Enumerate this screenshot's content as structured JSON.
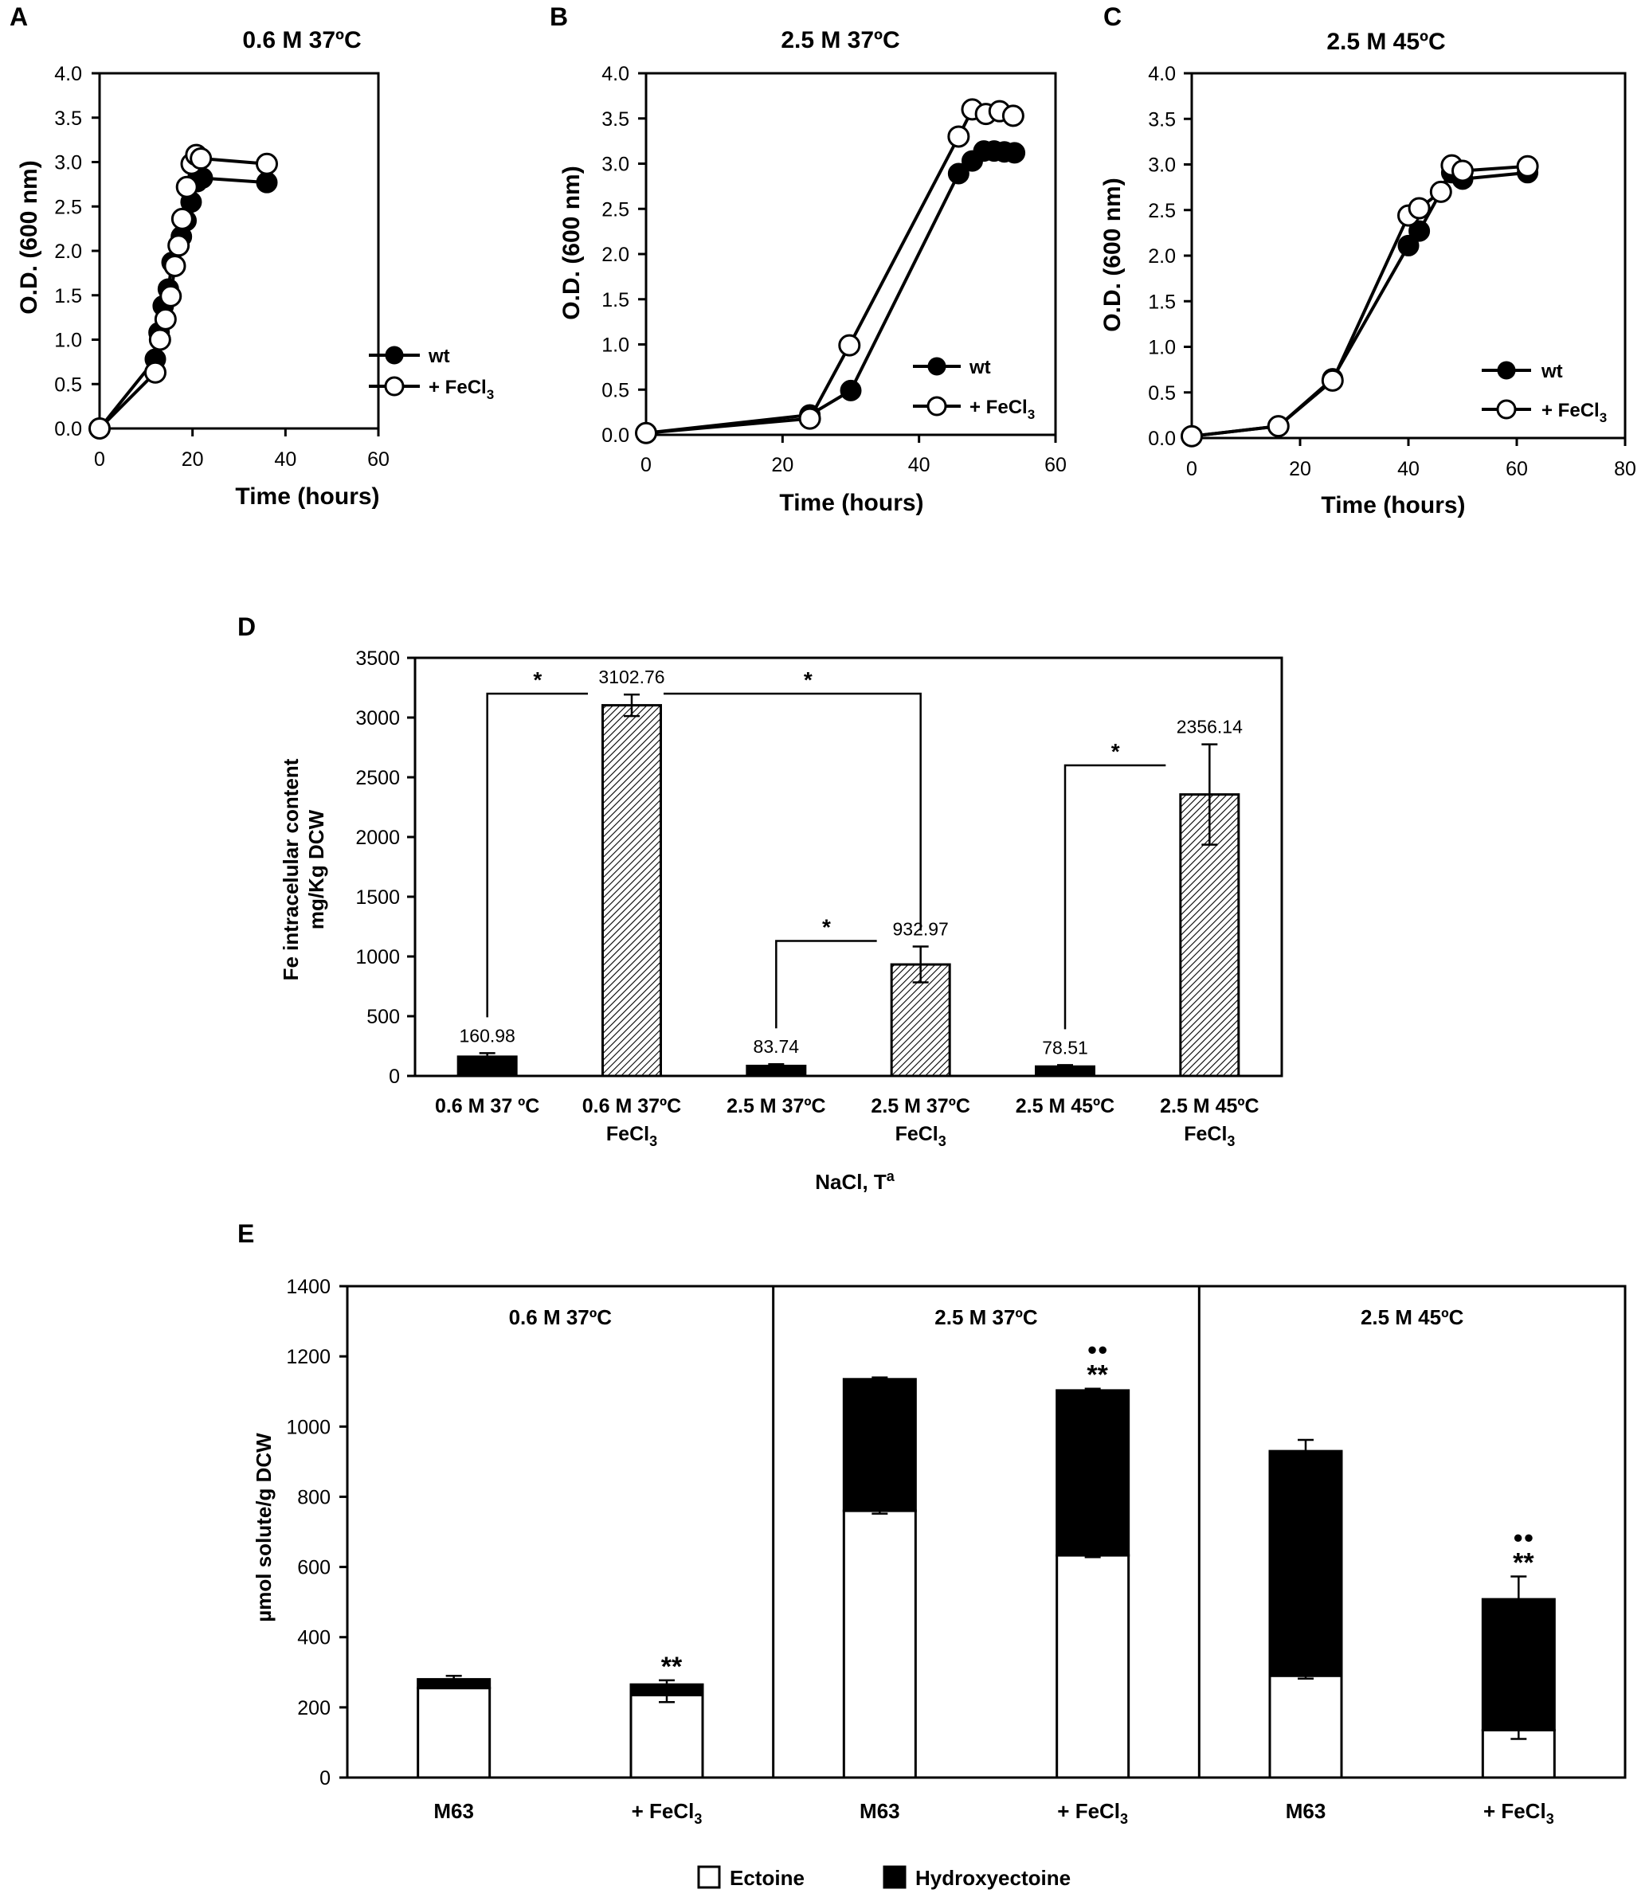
{
  "chart_data": [
    {
      "id": "A",
      "type": "line",
      "panel_label": "A",
      "title": "0.6 M 37ºC",
      "xlabel": "Time (hours)",
      "ylabel": "O.D. (600 nm)",
      "xlim": [
        0,
        60
      ],
      "ylim": [
        0,
        4
      ],
      "xticks": [
        "0",
        "20",
        "40",
        "60"
      ],
      "yticks": [
        "0.0",
        "0.5",
        "1.0",
        "1.5",
        "2.0",
        "2.5",
        "3.0",
        "3.5",
        "4.0"
      ],
      "legend_position": "bottom-right",
      "series": [
        {
          "name": "wt",
          "legend_label": "wt",
          "fill": "#000000",
          "x": [
            0,
            12,
            12.8,
            13.7,
            14.8,
            15.6,
            17.6,
            18.6,
            19.7,
            21.0,
            22.1,
            36.0
          ],
          "y": [
            0.0,
            0.78,
            1.08,
            1.38,
            1.57,
            1.87,
            2.16,
            2.34,
            2.55,
            2.78,
            2.82,
            2.77
          ]
        },
        {
          "name": "+ FeCl3",
          "legend_label": "+ FeCl",
          "legend_sub": "3",
          "fill": "#ffffff",
          "x": [
            0,
            12.0,
            13.0,
            14.2,
            15.3,
            16.2,
            17.0,
            17.8,
            18.8,
            19.8,
            20.8,
            21.8,
            36.0
          ],
          "y": [
            0.0,
            0.63,
            1.0,
            1.23,
            1.49,
            1.83,
            2.06,
            2.36,
            2.72,
            2.98,
            3.08,
            3.04,
            2.98
          ]
        }
      ]
    },
    {
      "id": "B",
      "type": "line",
      "panel_label": "B",
      "title": "2.5 M 37ºC",
      "xlabel": "Time (hours)",
      "ylabel": "O.D. (600 nm)",
      "xlim": [
        0,
        60
      ],
      "ylim": [
        0,
        4
      ],
      "xticks": [
        "0",
        "20",
        "40",
        "60"
      ],
      "yticks": [
        "0.0",
        "0.5",
        "1.0",
        "1.5",
        "2.0",
        "2.5",
        "3.0",
        "3.5",
        "4.0"
      ],
      "legend_position": "bottom-right",
      "series": [
        {
          "name": "wt",
          "legend_label": "wt",
          "fill": "#000000",
          "x": [
            0,
            24,
            30,
            45.8,
            47.8,
            49.5,
            51.0,
            52.5,
            54.0
          ],
          "y": [
            0.02,
            0.22,
            0.49,
            2.89,
            3.03,
            3.14,
            3.14,
            3.13,
            3.12
          ]
        },
        {
          "name": "+ FeCl3",
          "legend_label": "+ FeCl",
          "legend_sub": "3",
          "fill": "#ffffff",
          "x": [
            0,
            24,
            29.8,
            45.8,
            47.8,
            49.8,
            51.8,
            53.8
          ],
          "y": [
            0.02,
            0.18,
            0.99,
            3.3,
            3.6,
            3.55,
            3.58,
            3.53
          ]
        }
      ]
    },
    {
      "id": "C",
      "type": "line",
      "panel_label": "C",
      "title": "2.5 M 45ºC",
      "xlabel": "Time (hours)",
      "ylabel": "O.D. (600 nm)",
      "xlim": [
        0,
        80
      ],
      "ylim": [
        0,
        4
      ],
      "xticks": [
        "0",
        "20",
        "40",
        "60",
        "80"
      ],
      "yticks": [
        "0.0",
        "0.5",
        "1.0",
        "1.5",
        "2.0",
        "2.5",
        "3.0",
        "3.5",
        "4.0"
      ],
      "legend_position": "bottom-right",
      "series": [
        {
          "name": "wt",
          "legend_label": "wt",
          "fill": "#000000",
          "x": [
            0,
            16,
            26,
            40,
            42,
            46,
            48,
            50,
            62
          ],
          "y": [
            0.02,
            0.13,
            0.65,
            2.11,
            2.27,
            2.7,
            2.91,
            2.84,
            2.91
          ]
        },
        {
          "name": "+ FeCl3",
          "legend_label": "+ FeCl",
          "legend_sub": "3",
          "fill": "#ffffff",
          "x": [
            0,
            16,
            26,
            40,
            42,
            46,
            48,
            50,
            62
          ],
          "y": [
            0.02,
            0.13,
            0.63,
            2.44,
            2.52,
            2.7,
            2.99,
            2.93,
            2.98
          ]
        }
      ]
    },
    {
      "id": "D",
      "type": "bar",
      "panel_label": "D",
      "ylabel_line1": "Fe intracelular content",
      "ylabel_line2": "mg/Kg DCW",
      "xlabel": "NaCl, T",
      "xlabel_sup": "a",
      "ylim": [
        0,
        3500
      ],
      "yticks": [
        "0",
        "500",
        "1000",
        "1500",
        "2000",
        "2500",
        "3000",
        "3500"
      ],
      "categories": [
        {
          "line1": "0.6 M 37 ºC",
          "line2": "",
          "line2_sub": ""
        },
        {
          "line1": "0.6 M 37ºC",
          "line2": "FeCl",
          "line2_sub": "3"
        },
        {
          "line1": "2.5 M 37ºC",
          "line2": "",
          "line2_sub": ""
        },
        {
          "line1": "2.5 M 37ºC",
          "line2": "FeCl",
          "line2_sub": "3"
        },
        {
          "line1": "2.5 M 45ºC",
          "line2": "",
          "line2_sub": ""
        },
        {
          "line1": "2.5 M 45ºC",
          "line2": "FeCl",
          "line2_sub": "3"
        }
      ],
      "values": [
        160.98,
        3102.76,
        83.74,
        932.97,
        78.51,
        2356.14
      ],
      "value_labels": [
        "160.98",
        "3102.76",
        "83.74",
        "932.97",
        "78.51",
        "2356.14"
      ],
      "errors": [
        30,
        90,
        15,
        150,
        12,
        420
      ],
      "patterns": [
        "solid",
        "hatch",
        "solid",
        "hatch",
        "solid",
        "hatch"
      ],
      "significance": [
        {
          "from": 0,
          "to": 1,
          "label": "*",
          "y": 3200
        },
        {
          "from": 1,
          "to": 3,
          "label": "*",
          "y": 3200
        },
        {
          "from": 2,
          "to": 3,
          "label": "*",
          "y": 1130
        },
        {
          "from": 4,
          "to": 5,
          "label": "*",
          "y": 2600
        }
      ]
    },
    {
      "id": "E",
      "type": "stacked-bar",
      "panel_label": "E",
      "ylabel": "µmol solute/g DCW",
      "ylim": [
        0,
        1400
      ],
      "yticks": [
        "0",
        "200",
        "400",
        "600",
        "800",
        "1000",
        "1200",
        "1400"
      ],
      "groups": [
        "0.6 M 37ºC",
        "2.5 M 37ºC",
        "2.5 M 45ºC"
      ],
      "categories": [
        {
          "label": "M63",
          "sub": ""
        },
        {
          "label": "+ FeCl",
          "sub": "3"
        },
        {
          "label": "M63",
          "sub": ""
        },
        {
          "label": "+ FeCl",
          "sub": "3"
        },
        {
          "label": "M63",
          "sub": ""
        },
        {
          "label": "+ FeCl",
          "sub": "3"
        }
      ],
      "series": [
        {
          "name": "Ectoine",
          "fill": "#ffffff",
          "values": [
            255,
            235,
            760,
            633,
            290,
            135
          ],
          "errors": [
            0,
            20,
            8,
            5,
            8,
            25
          ]
        },
        {
          "name": "Hydroxyectoine",
          "fill": "#000000",
          "values": [
            25,
            30,
            375,
            470,
            640,
            373
          ],
          "errors": [
            10,
            12,
            5,
            5,
            32,
            65
          ]
        }
      ],
      "annotations": [
        {
          "bar": 1,
          "stars": "**",
          "dots": ""
        },
        {
          "bar": 3,
          "stars": "**",
          "dots": "●●"
        },
        {
          "bar": 5,
          "stars": "**",
          "dots": "●●"
        }
      ]
    }
  ]
}
